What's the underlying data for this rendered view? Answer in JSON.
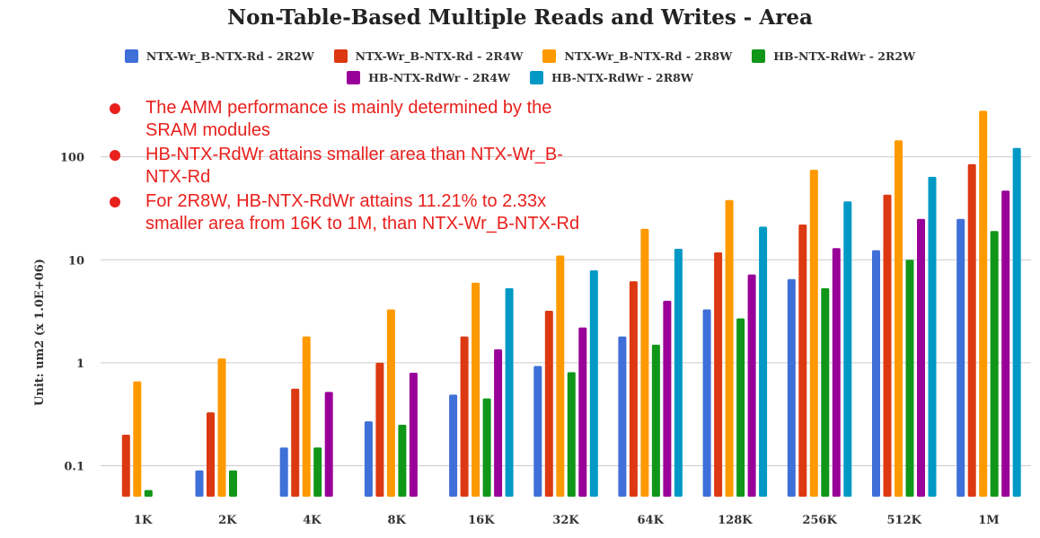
{
  "chart_data": {
    "type": "bar",
    "title": "Non-Table-Based Multiple Reads and Writes - Area",
    "ylabel": "Unit: um2 (x 1.0E+06)",
    "xlabel": "",
    "y_scale": "log",
    "ylim": [
      0.05,
      300
    ],
    "y_ticks": [
      0.1,
      1,
      10,
      100
    ],
    "y_tick_labels": [
      "0.1",
      "1",
      "10",
      "100"
    ],
    "grid": true,
    "legend_position": "top",
    "categories": [
      "1K",
      "2K",
      "4K",
      "8K",
      "16K",
      "32K",
      "64K",
      "128K",
      "256K",
      "512K",
      "1M"
    ],
    "series": [
      {
        "name": "NTX-Wr_B-NTX-Rd - 2R2W",
        "color": "#3f6fd8",
        "values": [
          null,
          0.09,
          0.15,
          0.27,
          0.49,
          0.93,
          1.8,
          3.3,
          6.5,
          12.4,
          25
        ]
      },
      {
        "name": "NTX-Wr_B-NTX-Rd - 2R4W",
        "color": "#dc3912",
        "values": [
          0.2,
          0.33,
          0.56,
          1.0,
          1.8,
          3.2,
          6.2,
          11.8,
          22,
          43,
          85
        ]
      },
      {
        "name": "NTX-Wr_B-NTX-Rd - 2R8W",
        "color": "#ff9900",
        "values": [
          0.66,
          1.1,
          1.8,
          3.3,
          6.0,
          11,
          20,
          38,
          75,
          145,
          280
        ]
      },
      {
        "name": "HB-NTX-RdWr - 2R2W",
        "color": "#109618",
        "values": [
          0.058,
          0.09,
          0.15,
          0.25,
          0.45,
          0.81,
          1.5,
          2.7,
          5.3,
          10,
          19
        ]
      },
      {
        "name": "HB-NTX-RdWr - 2R4W",
        "color": "#990099",
        "values": [
          null,
          null,
          0.52,
          0.8,
          1.35,
          2.2,
          4.0,
          7.2,
          13,
          25,
          47
        ]
      },
      {
        "name": "HB-NTX-RdWr - 2R8W",
        "color": "#0099c6",
        "values": [
          null,
          null,
          null,
          null,
          5.3,
          7.9,
          12.8,
          21,
          37,
          64,
          122
        ]
      }
    ]
  },
  "notes": [
    "The AMM performance is mainly determined by the SRAM modules",
    "HB-NTX-RdWr attains smaller area than NTX-Wr_B-NTX-Rd",
    "For 2R8W, HB-NTX-RdWr attains 11.21% to 2.33x smaller area from 16K to 1M, than NTX-Wr_B-NTX-Rd"
  ]
}
